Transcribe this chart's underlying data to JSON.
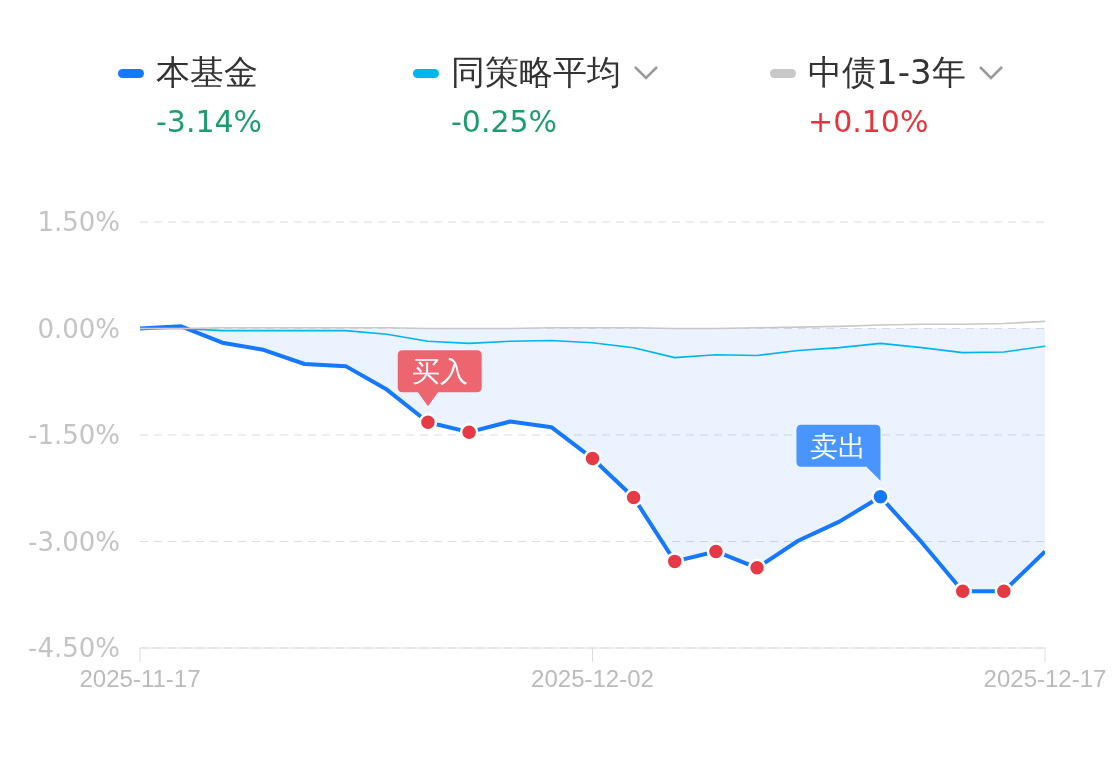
{
  "chart_data": {
    "type": "line",
    "categories": [
      "2025-11-17",
      null,
      null,
      null,
      null,
      null,
      null,
      null,
      null,
      null,
      null,
      "2025-12-02",
      null,
      null,
      null,
      null,
      null,
      null,
      null,
      null,
      null,
      null,
      "2025-12-17"
    ],
    "series": [
      {
        "name": "本基金",
        "type": "area",
        "color": "#1677ff",
        "values": [
          0,
          0.03,
          -0.2,
          -0.3,
          -0.5,
          -0.53,
          -0.86,
          -1.32,
          -1.46,
          -1.31,
          -1.39,
          -1.83,
          -2.38,
          -3.28,
          -3.14,
          -3.37,
          -2.99,
          -2.72,
          -2.37,
          -3.01,
          -3.7,
          -3.7,
          -3.14
        ]
      },
      {
        "name": "同策略平均",
        "color": "#00b4f0",
        "values": [
          0,
          0,
          -0.03,
          -0.03,
          -0.03,
          -0.03,
          -0.08,
          -0.18,
          -0.21,
          -0.18,
          -0.17,
          -0.2,
          -0.27,
          -0.41,
          -0.37,
          -0.38,
          -0.31,
          -0.27,
          -0.21,
          -0.27,
          -0.34,
          -0.33,
          -0.25
        ]
      },
      {
        "name": "中债1-3年",
        "color": "#c8c8c8",
        "values": [
          0,
          0,
          0.01,
          0.01,
          0.01,
          0.01,
          0.01,
          0,
          0,
          0,
          0.01,
          0.01,
          0.01,
          0,
          0,
          0.01,
          0.02,
          0.03,
          0.05,
          0.06,
          0.06,
          0.07,
          0.1
        ]
      },
      {
        "type": "scatter",
        "marker": "circle",
        "color": "#e63946",
        "values": [
          null,
          null,
          null,
          null,
          null,
          null,
          null,
          -1.32,
          -1.46,
          null,
          null,
          -1.83,
          -2.38,
          -3.28,
          -3.14,
          -3.37,
          null,
          null,
          null,
          null,
          -3.7,
          -3.7,
          null
        ]
      },
      {
        "type": "scatter",
        "marker": "circle",
        "color": "#1677ff",
        "values": [
          null,
          null,
          null,
          null,
          null,
          null,
          null,
          null,
          null,
          null,
          null,
          null,
          null,
          null,
          null,
          null,
          null,
          null,
          -2.37,
          null,
          null,
          null,
          null
        ]
      }
    ],
    "ylim": [
      -4.5,
      1.5
    ],
    "yticks": [
      {
        "value": -4.5,
        "label": "-4.50%"
      },
      {
        "value": -3,
        "label": "-3.00%"
      },
      {
        "value": -1.5,
        "label": "-1.50%"
      },
      {
        "value": 0,
        "label": "0.00%"
      },
      {
        "value": 1.5,
        "label": "1.50%"
      }
    ],
    "grid": "y",
    "legend": "top",
    "line_style": "solid",
    "annotations": [
      "-3.14%",
      "-0.25%",
      "+0.10%",
      {
        "text": "买入",
        "y": -1.32
      },
      "卖出"
    ]
  }
}
